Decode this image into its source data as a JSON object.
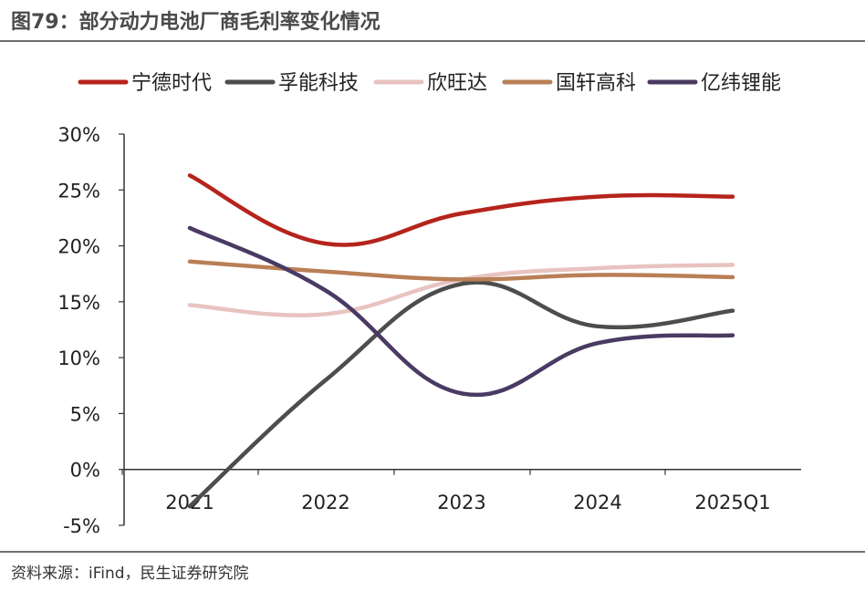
{
  "header": {
    "title": "图79：部分动力电池厂商毛利率变化情况"
  },
  "footer": {
    "source": "资料来源：iFind，民生证券研究院"
  },
  "chart_data": {
    "type": "line",
    "title": "",
    "xlabel": "",
    "ylabel": "",
    "categories": [
      "2021",
      "2022",
      "2023",
      "2024",
      "2025Q1"
    ],
    "y_ticks": [
      "-5%",
      "0%",
      "5%",
      "10%",
      "15%",
      "20%",
      "25%",
      "30%"
    ],
    "ylim": [
      -5,
      30
    ],
    "grid": false,
    "legend_position": "top",
    "series": [
      {
        "name": "宁德时代",
        "color": "#b5241c",
        "values": [
          26.3,
          20.2,
          22.9,
          24.4,
          24.4
        ]
      },
      {
        "name": "孚能科技",
        "color": "#4d4d4d",
        "values": [
          -3.3,
          8.0,
          16.6,
          12.8,
          14.2
        ]
      },
      {
        "name": "欣旺达",
        "color": "#e8c3c0",
        "values": [
          14.7,
          13.9,
          17.0,
          18.0,
          18.3
        ]
      },
      {
        "name": "国轩高科",
        "color": "#b97f56",
        "values": [
          18.6,
          17.7,
          17.0,
          17.4,
          17.2
        ]
      },
      {
        "name": "亿纬锂能",
        "color": "#4a3a63",
        "values": [
          21.6,
          16.0,
          6.8,
          11.3,
          12.0
        ]
      }
    ]
  }
}
